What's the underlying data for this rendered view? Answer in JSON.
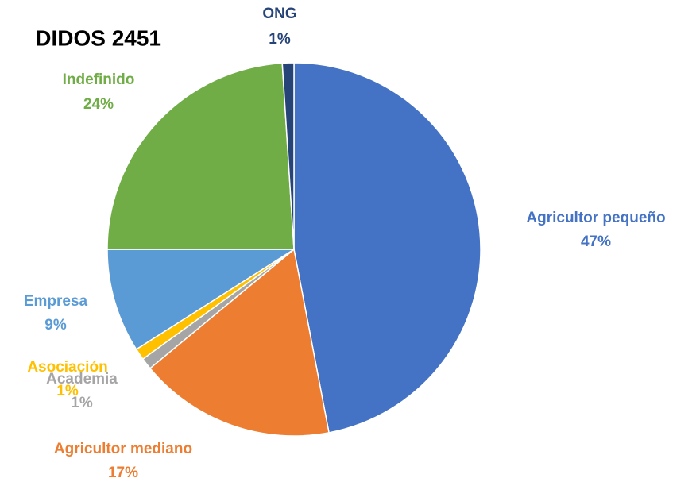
{
  "chart_data": {
    "type": "pie",
    "title": "DIDOS 2451",
    "categories": [
      "Agricultor pequeño",
      "Agricultor mediano",
      "Academia",
      "Asociación",
      "Empresa",
      "Indefinido",
      "ONG"
    ],
    "values": [
      47,
      17,
      1,
      1,
      9,
      24,
      1
    ],
    "value_labels": [
      "47%",
      "17%",
      "1%",
      "1%",
      "9%",
      "24%",
      "1%"
    ],
    "colors": [
      "#4472c4",
      "#ed7d31",
      "#a5a5a5",
      "#ffc000",
      "#5b9bd5",
      "#70ad47",
      "#264478"
    ]
  }
}
